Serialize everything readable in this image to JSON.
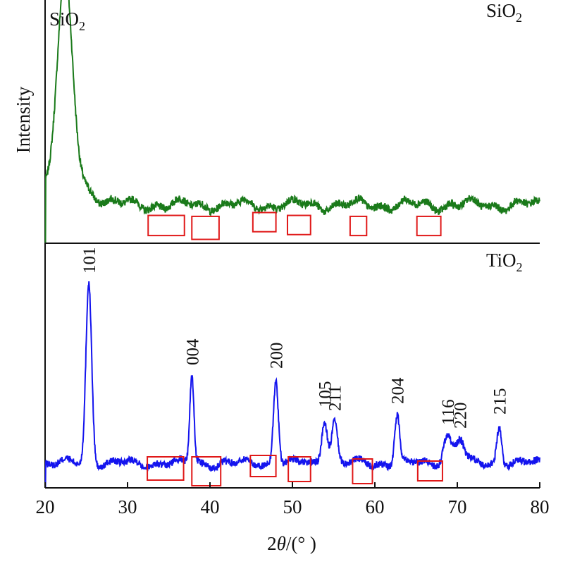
{
  "chart_data": {
    "type": "line",
    "xlabel_prefix": "2",
    "xlabel_symbol": "θ",
    "xlabel_suffix": "/(° )",
    "ylabel": "Intensity",
    "xlim": [
      20,
      80
    ],
    "x_ticks": [
      "20",
      "30",
      "40",
      "50",
      "60",
      "70",
      "80"
    ],
    "grid": false,
    "colors": {
      "SiO2": "#1a7a1a",
      "TiO2": "#1414ee",
      "highlight": "#e01818"
    },
    "panels": [
      {
        "id": "top",
        "corner_label": {
          "main": "SiO",
          "sub": "2"
        },
        "peak_phase_label": {
          "main": "SiO",
          "sub": "2",
          "x": 22.3
        },
        "series": {
          "name": "SiO2",
          "baseline": 40,
          "noise": 4,
          "peaks": [
            {
              "center": 22.4,
              "height": 205,
              "width": 0.9
            },
            {
              "center": 22.4,
              "height": 30,
              "width": 2.6
            }
          ],
          "ylim": [
            0,
            250
          ]
        },
        "highlight_boxes": [
          {
            "x": [
              32.5,
              36.9
            ],
            "y": [
              8,
              29
            ]
          },
          {
            "x": [
              37.8,
              41.1
            ],
            "y": [
              4,
              28
            ]
          },
          {
            "x": [
              45.2,
              48.0
            ],
            "y": [
              12,
              32
            ]
          },
          {
            "x": [
              49.4,
              52.2
            ],
            "y": [
              9,
              29
            ]
          },
          {
            "x": [
              57.0,
              59.0
            ],
            "y": [
              8,
              28
            ]
          },
          {
            "x": [
              65.1,
              68.0
            ],
            "y": [
              8,
              28
            ]
          }
        ]
      },
      {
        "id": "bottom",
        "corner_label": {
          "main": "TiO",
          "sub": "2"
        },
        "series": {
          "name": "TiO2",
          "baseline": 35,
          "noise": 5,
          "peaks": [
            {
              "center": 25.3,
              "height": 255,
              "width": 0.35
            },
            {
              "center": 37.8,
              "height": 125,
              "width": 0.25
            },
            {
              "center": 48.0,
              "height": 120,
              "width": 0.3
            },
            {
              "center": 53.9,
              "height": 65,
              "width": 0.35
            },
            {
              "center": 55.1,
              "height": 60,
              "width": 0.35
            },
            {
              "center": 62.7,
              "height": 70,
              "width": 0.3
            },
            {
              "center": 68.8,
              "height": 40,
              "width": 0.5
            },
            {
              "center": 70.3,
              "height": 35,
              "width": 0.5
            },
            {
              "center": 75.1,
              "height": 55,
              "width": 0.3
            }
          ],
          "ylim": [
            0,
            320
          ]
        },
        "peak_labels": [
          {
            "label": "101",
            "x": 25.3
          },
          {
            "label": "004",
            "x": 37.8
          },
          {
            "label": "200",
            "x": 48.0
          },
          {
            "label": "105",
            "x": 53.9
          },
          {
            "label": "211",
            "x": 55.1
          },
          {
            "label": "204",
            "x": 62.7
          },
          {
            "label": "116",
            "x": 68.8
          },
          {
            "label": "220",
            "x": 70.3
          },
          {
            "label": "215",
            "x": 75.1
          }
        ],
        "highlight_boxes": [
          {
            "x": [
              32.4,
              36.8
            ],
            "y": [
              11,
              44
            ]
          },
          {
            "x": [
              37.8,
              41.3
            ],
            "y": [
              3,
              44
            ]
          },
          {
            "x": [
              44.9,
              48.0
            ],
            "y": [
              16,
              46
            ]
          },
          {
            "x": [
              49.5,
              52.2
            ],
            "y": [
              9,
              44
            ]
          },
          {
            "x": [
              57.3,
              59.7
            ],
            "y": [
              6,
              41
            ]
          },
          {
            "x": [
              65.2,
              68.2
            ],
            "y": [
              10,
              38
            ]
          }
        ]
      }
    ]
  }
}
